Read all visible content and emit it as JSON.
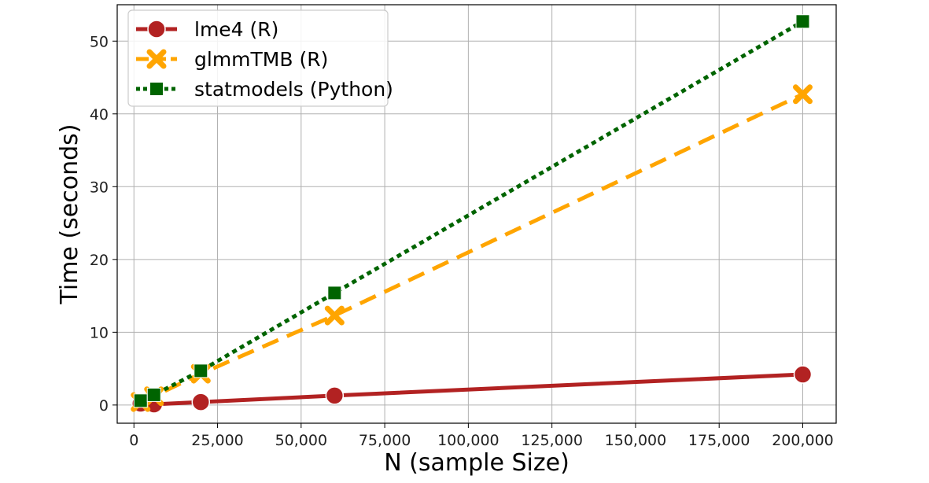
{
  "chart_data": {
    "type": "line",
    "xlabel": "N (sample Size)",
    "ylabel": "Time (seconds)",
    "xlim": [
      -5000,
      210000
    ],
    "ylim": [
      -2.5,
      55
    ],
    "grid": true,
    "legend_position": "top-left",
    "x_ticks": [
      0,
      25000,
      50000,
      75000,
      100000,
      125000,
      150000,
      175000,
      200000
    ],
    "x_tick_labels": [
      "0",
      "25,000",
      "50,000",
      "75,000",
      "100,000",
      "125,000",
      "150,000",
      "175,000",
      "200,000"
    ],
    "y_ticks": [
      0,
      10,
      20,
      30,
      40,
      50
    ],
    "y_tick_labels": [
      "0",
      "10",
      "20",
      "30",
      "40",
      "50"
    ],
    "series": [
      {
        "name": "lme4 (R)",
        "color": "#b22222",
        "line_style": "solid",
        "marker": "circle",
        "x": [
          2000,
          6000,
          20000,
          60000,
          200000
        ],
        "y": [
          0.2,
          0.1,
          0.4,
          1.3,
          4.2
        ]
      },
      {
        "name": "glmmTMB (R)",
        "color": "#ffa500",
        "line_style": "dashed",
        "marker": "x",
        "x": [
          2000,
          6000,
          20000,
          60000,
          200000
        ],
        "y": [
          0.4,
          1.2,
          4.3,
          12.3,
          42.7
        ]
      },
      {
        "name": "statmodels (Python)",
        "color": "#006400",
        "line_style": "dotted",
        "marker": "square",
        "x": [
          2000,
          6000,
          20000,
          60000,
          200000
        ],
        "y": [
          0.6,
          1.4,
          4.7,
          15.4,
          52.7
        ]
      }
    ]
  }
}
